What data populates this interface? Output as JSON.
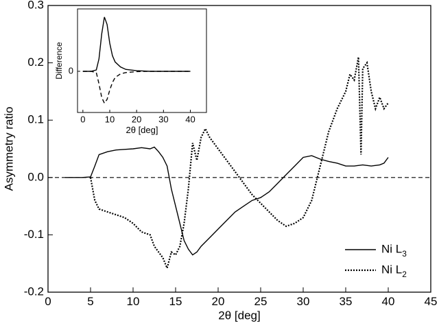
{
  "chart_data": [
    {
      "type": "line",
      "xlabel": "2θ [deg]",
      "ylabel": "Asymmetry ratio",
      "xlim": [
        0,
        45
      ],
      "xticks": [
        0,
        5,
        10,
        15,
        20,
        25,
        30,
        35,
        40,
        45
      ],
      "ylim": [
        -0.2,
        0.3
      ],
      "yticks": [
        -0.2,
        -0.1,
        {
          "value": 0,
          "label": "0.0"
        },
        0.1,
        0.2,
        0.3
      ],
      "reference_line": 0,
      "legend": "lower right",
      "series": [
        {
          "name": "Ni L3",
          "color": "#000000",
          "dash": "solid",
          "x": [
            2,
            3,
            4,
            5,
            5.5,
            6,
            7,
            8,
            9,
            10,
            11,
            12,
            12.5,
            13,
            13.5,
            14,
            14.5,
            15,
            15.5,
            16,
            16.5,
            17,
            17.5,
            18,
            19,
            20,
            21,
            22,
            23,
            24,
            25,
            26,
            27,
            28,
            29,
            30,
            31,
            32,
            33,
            34,
            35,
            36,
            37,
            38,
            39,
            39.5,
            40
          ],
          "values": [
            0.0,
            0.0,
            0.0,
            0.001,
            0.02,
            0.04,
            0.045,
            0.048,
            0.049,
            0.05,
            0.052,
            0.05,
            0.053,
            0.045,
            0.035,
            0.02,
            -0.02,
            -0.05,
            -0.08,
            -0.11,
            -0.125,
            -0.135,
            -0.13,
            -0.12,
            -0.105,
            -0.09,
            -0.075,
            -0.06,
            -0.05,
            -0.04,
            -0.035,
            -0.025,
            -0.01,
            0.005,
            0.02,
            0.035,
            0.038,
            0.032,
            0.028,
            0.025,
            0.02,
            0.02,
            0.022,
            0.02,
            0.022,
            0.025,
            0.035
          ]
        },
        {
          "name": "Ni L2",
          "color": "#000000",
          "dash": "dotted",
          "x": [
            5,
            5.5,
            6,
            7,
            8,
            9,
            10,
            11,
            12,
            12.5,
            13,
            13.5,
            14,
            14.5,
            15,
            15.5,
            16,
            16.5,
            17,
            17.5,
            18,
            18.5,
            19,
            20,
            21,
            22,
            23,
            24,
            25,
            26,
            27,
            28,
            29,
            30,
            31,
            32,
            33,
            34,
            35,
            35.5,
            36,
            36.5,
            36.8,
            37,
            37.5,
            38,
            38.5,
            39,
            39.5,
            40
          ],
          "values": [
            0.0,
            -0.04,
            -0.055,
            -0.06,
            -0.065,
            -0.07,
            -0.08,
            -0.095,
            -0.1,
            -0.12,
            -0.13,
            -0.14,
            -0.158,
            -0.13,
            -0.135,
            -0.12,
            -0.08,
            -0.02,
            0.06,
            0.03,
            0.07,
            0.085,
            0.07,
            0.05,
            0.03,
            0.01,
            -0.01,
            -0.03,
            -0.045,
            -0.06,
            -0.075,
            -0.085,
            -0.08,
            -0.07,
            -0.04,
            0.02,
            0.08,
            0.12,
            0.15,
            0.18,
            0.17,
            0.21,
            0.04,
            0.19,
            0.2,
            0.15,
            0.12,
            0.14,
            0.12,
            0.13
          ]
        }
      ]
    },
    {
      "type": "line",
      "xlabel": "2θ [deg]",
      "ylabel": "Difference",
      "xlim": [
        -2,
        46
      ],
      "xticks": [
        0,
        10,
        20,
        30,
        40
      ],
      "ylim": [
        -0.66,
        1.0
      ],
      "yticks": [
        0
      ],
      "series": [
        {
          "color": "#000000",
          "dash": "solid",
          "x": [
            0,
            3,
            5,
            6,
            7,
            8,
            9,
            10,
            11,
            12,
            14,
            16,
            20,
            25,
            40
          ],
          "values": [
            0,
            0,
            0.02,
            0.2,
            0.6,
            0.87,
            0.75,
            0.45,
            0.25,
            0.15,
            0.07,
            0.03,
            0.01,
            0,
            0
          ]
        },
        {
          "color": "#000000",
          "dash": "dashed",
          "x": [
            0,
            3,
            5,
            6,
            7,
            8,
            9,
            10,
            11,
            12,
            14,
            16,
            20,
            25,
            40
          ],
          "values": [
            0,
            0,
            -0.02,
            -0.2,
            -0.42,
            -0.51,
            -0.45,
            -0.3,
            -0.18,
            -0.1,
            -0.04,
            -0.02,
            -0.005,
            0,
            0
          ]
        }
      ]
    }
  ]
}
